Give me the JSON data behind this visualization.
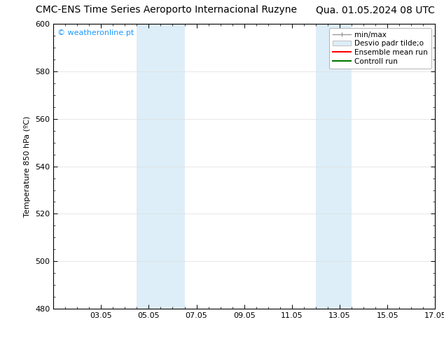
{
  "title_left": "CMC-ENS Time Series Aeroporto Internacional Ruzyne",
  "title_right": "Qua. 01.05.2024 08 UTC",
  "ylabel": "Temperature 850 hPa (ºC)",
  "watermark": "© weatheronline.pt",
  "watermark_color": "#1a9aff",
  "ylim": [
    480,
    600
  ],
  "yticks": [
    480,
    500,
    520,
    540,
    560,
    580,
    600
  ],
  "xlim": [
    0,
    16
  ],
  "xtick_labels": [
    "03.05",
    "05.05",
    "07.05",
    "09.05",
    "11.05",
    "13.05",
    "15.05",
    "17.05"
  ],
  "xtick_positions": [
    2,
    4,
    6,
    8,
    10,
    12,
    14,
    16
  ],
  "background_color": "#ffffff",
  "plot_bg_color": "#ffffff",
  "shaded_bands": [
    {
      "x_start": 3.5,
      "x_end": 5.5,
      "color": "#ddeef8"
    },
    {
      "x_start": 11.0,
      "x_end": 12.5,
      "color": "#ddeef8"
    }
  ],
  "legend_entries": [
    {
      "label": "min/max",
      "color": "#aaaaaa",
      "lw": 1.2,
      "style": "errorbar"
    },
    {
      "label": "Desvio padr tilde;o",
      "color": "#ddeef8",
      "edgecolor": "#aaaaaa",
      "lw": 0.5,
      "style": "box"
    },
    {
      "label": "Ensemble mean run",
      "color": "#ff0000",
      "lw": 1.5,
      "style": "line"
    },
    {
      "label": "Controll run",
      "color": "#007700",
      "lw": 1.5,
      "style": "line"
    }
  ],
  "title_fontsize": 10,
  "axis_label_fontsize": 8,
  "tick_fontsize": 8,
  "legend_fontsize": 7.5,
  "grid_color": "#dddddd",
  "border_color": "#000000",
  "minor_tick_count": 4
}
